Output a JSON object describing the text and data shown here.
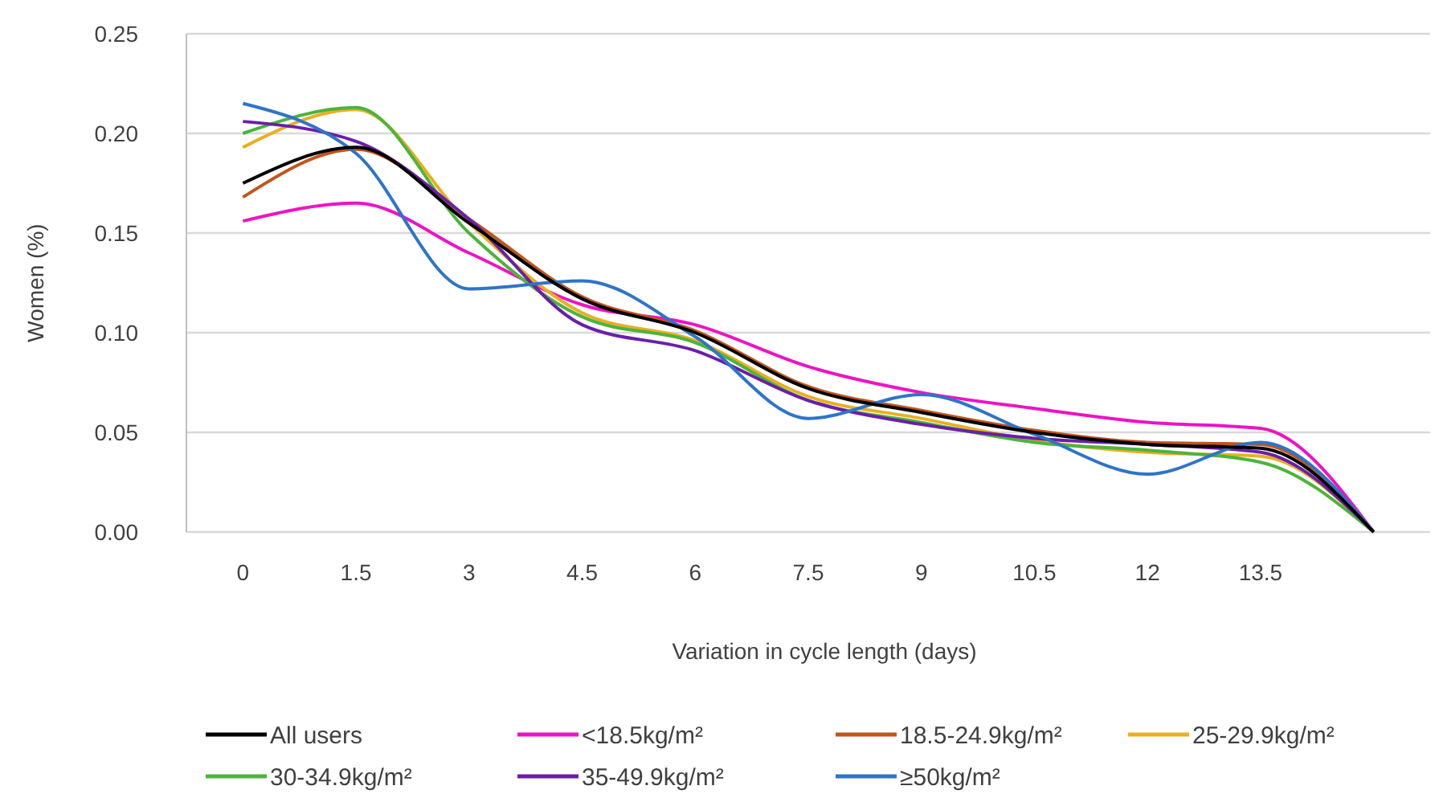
{
  "chart_data": {
    "type": "line",
    "xlabel": "Variation in cycle length (days)",
    "ylabel": "Women (%)",
    "categories": [
      "0",
      "1.5",
      "3",
      "4.5",
      "6",
      "7.5",
      "9",
      "10.5",
      "12",
      "13.5",
      null
    ],
    "ylim": [
      0,
      0.25
    ],
    "yticks": [
      {
        "value": 0,
        "label": "0.00"
      },
      {
        "value": 0.05,
        "label": "0.05"
      },
      {
        "value": 0.1,
        "label": "0.10"
      },
      {
        "value": 0.15,
        "label": "0.15"
      },
      {
        "value": 0.2,
        "label": "0.20"
      },
      {
        "value": 0.25,
        "label": "0.25"
      }
    ],
    "grid": "y",
    "legend": "bottom",
    "marker": "none",
    "line_style": "solid",
    "series": [
      {
        "name": "All users",
        "color": "#000000",
        "values": [
          0.175,
          0.193,
          0.155,
          0.117,
          0.1,
          0.072,
          0.06,
          0.05,
          0.044,
          0.042,
          0
        ]
      },
      {
        "name": "<18.5kg/m²",
        "color": "#ec14c4",
        "values": [
          0.156,
          0.165,
          0.14,
          0.114,
          0.104,
          0.083,
          0.07,
          0.062,
          0.055,
          0.052,
          0
        ]
      },
      {
        "name": "18.5-24.9kg/m²",
        "color": "#c0561c",
        "values": [
          0.168,
          0.192,
          0.157,
          0.118,
          0.101,
          0.073,
          0.061,
          0.051,
          0.045,
          0.044,
          0
        ]
      },
      {
        "name": "25-29.9kg/m²",
        "color": "#e8b020",
        "values": [
          0.193,
          0.212,
          0.155,
          0.11,
          0.096,
          0.068,
          0.057,
          0.046,
          0.04,
          0.038,
          0
        ]
      },
      {
        "name": "30-34.9kg/m²",
        "color": "#4cb43c",
        "values": [
          0.2,
          0.213,
          0.15,
          0.108,
          0.095,
          0.066,
          0.055,
          0.045,
          0.041,
          0.035,
          0
        ]
      },
      {
        "name": "35-49.9kg/m²",
        "color": "#6a1fa8",
        "values": [
          0.206,
          0.196,
          0.157,
          0.104,
          0.091,
          0.066,
          0.054,
          0.047,
          0.044,
          0.04,
          0
        ]
      },
      {
        "name": "≥50kg/m²",
        "color": "#2f74c8",
        "values": [
          0.215,
          0.19,
          0.122,
          0.126,
          0.098,
          0.057,
          0.069,
          0.049,
          0.029,
          0.045,
          0
        ]
      }
    ]
  }
}
